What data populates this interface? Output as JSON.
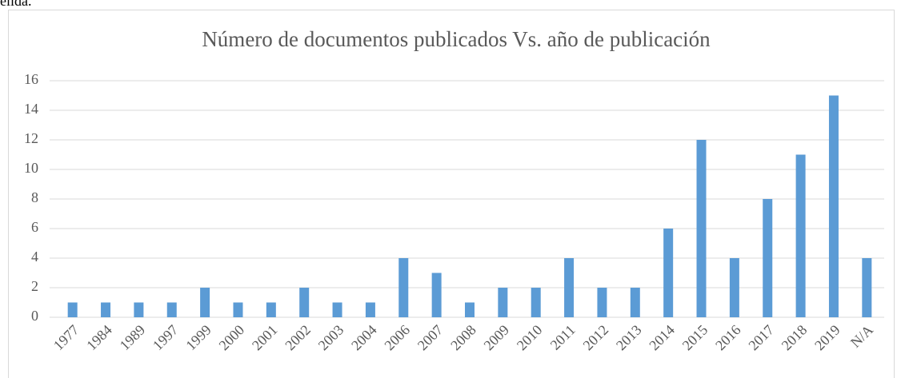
{
  "fragment": "elida.",
  "chart_data": {
    "type": "bar",
    "title": "Número de documentos publicados Vs. año de publicación",
    "categories": [
      "1977",
      "1984",
      "1989",
      "1997",
      "1999",
      "2000",
      "2001",
      "2002",
      "2003",
      "2004",
      "2006",
      "2007",
      "2008",
      "2009",
      "2010",
      "2011",
      "2012",
      "2013",
      "2014",
      "2015",
      "2016",
      "2017",
      "2018",
      "2019",
      "N/A"
    ],
    "values": [
      1,
      1,
      1,
      1,
      2,
      1,
      1,
      2,
      1,
      1,
      4,
      3,
      1,
      2,
      2,
      4,
      2,
      2,
      6,
      12,
      4,
      8,
      11,
      15,
      4
    ],
    "color": "#5b9bd5",
    "ylim": [
      0,
      16
    ],
    "yticks": [
      0,
      2,
      4,
      6,
      8,
      10,
      12,
      14,
      16
    ],
    "grid": true
  }
}
